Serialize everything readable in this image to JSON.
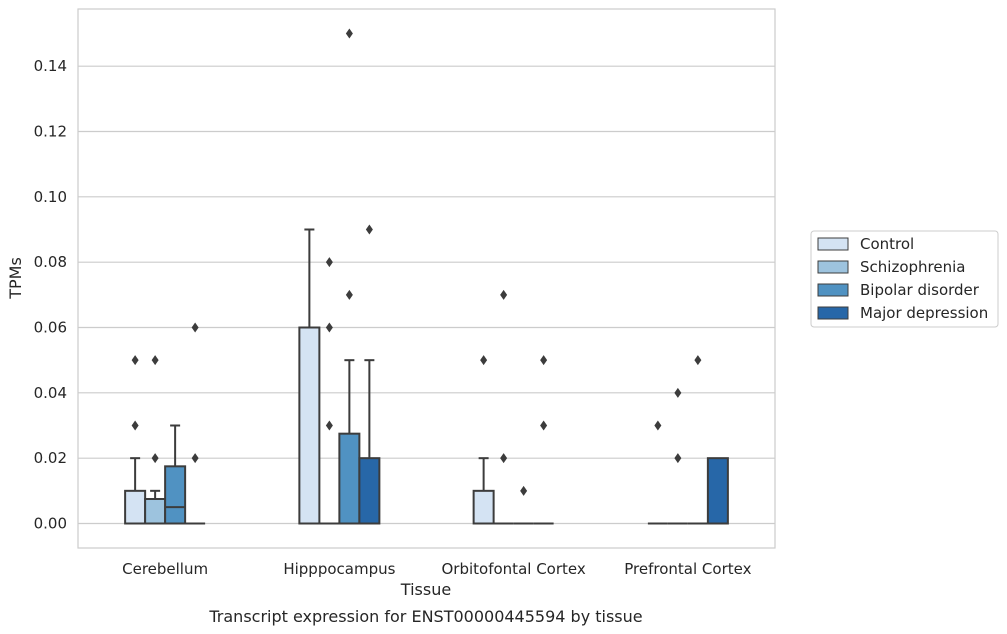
{
  "chart_data": {
    "type": "box",
    "caption": "Transcript expression for ENST00000445594 by tissue",
    "xlabel": "Tissue",
    "ylabel": "TPMs",
    "ylim": [
      -0.0075,
      0.1575
    ],
    "yticks": [
      "0.00",
      "0.02",
      "0.04",
      "0.06",
      "0.08",
      "0.10",
      "0.12",
      "0.14"
    ],
    "grid": true,
    "legend_position": "right",
    "categories": [
      "Cerebellum",
      "Hipppocampus",
      "Orbitofontal Cortex",
      "Prefrontal Cortex"
    ],
    "series": [
      {
        "name": "Control",
        "color": "#d4e3f3",
        "boxes": [
          {
            "q1": 0.0,
            "median": 0.0,
            "q3": 0.01,
            "whisker_low": 0.0,
            "whisker_high": 0.02,
            "outliers": [
              0.03,
              0.05
            ]
          },
          {
            "q1": 0.0,
            "median": 0.0,
            "q3": 0.06,
            "whisker_low": 0.0,
            "whisker_high": 0.09,
            "outliers": []
          },
          {
            "q1": 0.0,
            "median": 0.0,
            "q3": 0.01,
            "whisker_low": 0.0,
            "whisker_high": 0.02,
            "outliers": [
              0.05
            ]
          },
          {
            "q1": 0.0,
            "median": 0.0,
            "q3": 0.0,
            "whisker_low": 0.0,
            "whisker_high": 0.0,
            "outliers": [
              0.03
            ]
          }
        ]
      },
      {
        "name": "Schizophrenia",
        "color": "#9dc3de",
        "boxes": [
          {
            "q1": 0.0,
            "median": 0.0,
            "q3": 0.0075,
            "whisker_low": 0.0,
            "whisker_high": 0.01,
            "outliers": [
              0.02,
              0.05
            ]
          },
          {
            "q1": 0.0,
            "median": 0.0,
            "q3": 0.0,
            "whisker_low": 0.0,
            "whisker_high": 0.0,
            "outliers": [
              0.03,
              0.06,
              0.08
            ]
          },
          {
            "q1": 0.0,
            "median": 0.0,
            "q3": 0.0,
            "whisker_low": 0.0,
            "whisker_high": 0.0,
            "outliers": [
              0.02,
              0.07
            ]
          },
          {
            "q1": 0.0,
            "median": 0.0,
            "q3": 0.0,
            "whisker_low": 0.0,
            "whisker_high": 0.0,
            "outliers": [
              0.02,
              0.04
            ]
          }
        ]
      },
      {
        "name": "Bipolar disorder",
        "color": "#5092c2",
        "boxes": [
          {
            "q1": 0.0,
            "median": 0.005,
            "q3": 0.0175,
            "whisker_low": 0.0,
            "whisker_high": 0.03,
            "outliers": []
          },
          {
            "q1": 0.0,
            "median": 0.0,
            "q3": 0.0275,
            "whisker_low": 0.0,
            "whisker_high": 0.05,
            "outliers": [
              0.07,
              0.15
            ]
          },
          {
            "q1": 0.0,
            "median": 0.0,
            "q3": 0.0,
            "whisker_low": 0.0,
            "whisker_high": 0.0,
            "outliers": [
              0.01
            ]
          },
          {
            "q1": 0.0,
            "median": 0.0,
            "q3": 0.0,
            "whisker_low": 0.0,
            "whisker_high": 0.0,
            "outliers": [
              0.05
            ]
          }
        ]
      },
      {
        "name": "Major depression",
        "color": "#2767a8",
        "boxes": [
          {
            "q1": 0.0,
            "median": 0.0,
            "q3": 0.0,
            "whisker_low": 0.0,
            "whisker_high": 0.0,
            "outliers": [
              0.02,
              0.06
            ]
          },
          {
            "q1": 0.0,
            "median": 0.0,
            "q3": 0.02,
            "whisker_low": 0.0,
            "whisker_high": 0.05,
            "outliers": [
              0.09
            ]
          },
          {
            "q1": 0.0,
            "median": 0.0,
            "q3": 0.0,
            "whisker_low": 0.0,
            "whisker_high": 0.0,
            "outliers": [
              0.03,
              0.05
            ]
          },
          {
            "q1": 0.0,
            "median": 0.0,
            "q3": 0.02,
            "whisker_low": 0.0,
            "whisker_high": 0.02,
            "outliers": []
          }
        ]
      }
    ]
  }
}
